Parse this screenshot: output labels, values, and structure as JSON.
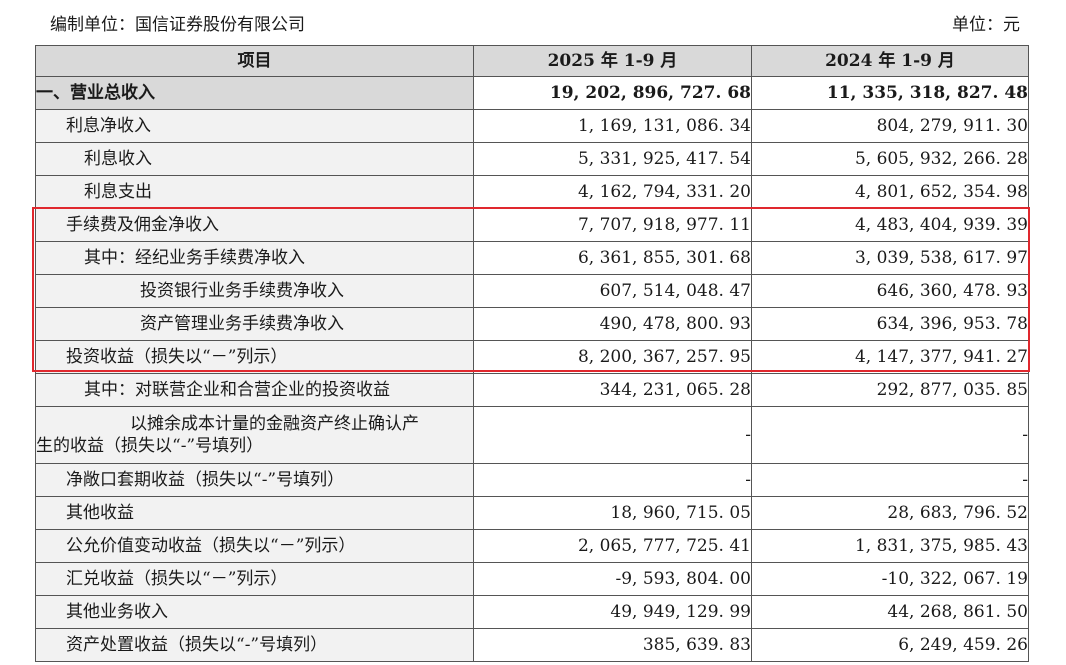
{
  "header": {
    "org": "编制单位：国信证券股份有限公司",
    "unit": "单位：元"
  },
  "table": {
    "headers": [
      "项目",
      "2025 年 1-9 月",
      "2024 年 1-9 月"
    ],
    "rows": [
      {
        "label": "一、营业总收入",
        "v2025": "19, 202, 896, 727. 68",
        "v2024": "11, 335, 318, 827. 48"
      },
      {
        "label": "利息净收入",
        "v2025": "1, 169, 131, 086. 34",
        "v2024": "804, 279, 911. 30"
      },
      {
        "label": "利息收入",
        "v2025": "5, 331, 925, 417. 54",
        "v2024": "5, 605, 932, 266. 28"
      },
      {
        "label": "利息支出",
        "v2025": "4, 162, 794, 331. 20",
        "v2024": "4, 801, 652, 354. 98"
      },
      {
        "label": "手续费及佣金净收入",
        "v2025": "7, 707, 918, 977. 11",
        "v2024": "4, 483, 404, 939. 39"
      },
      {
        "label": "其中：经纪业务手续费净收入",
        "v2025": "6, 361, 855, 301. 68",
        "v2024": "3, 039, 538, 617. 97"
      },
      {
        "label": "投资银行业务手续费净收入",
        "v2025": "607, 514, 048. 47",
        "v2024": "646, 360, 478. 93"
      },
      {
        "label": "资产管理业务手续费净收入",
        "v2025": "490, 478, 800. 93",
        "v2024": "634, 396, 953. 78"
      },
      {
        "label": "投资收益（损失以“－”列示）",
        "v2025": "8, 200, 367, 257. 95",
        "v2024": "4, 147, 377, 941. 27"
      },
      {
        "label": "其中：对联营企业和合营企业的投资收益",
        "v2025": "344, 231, 065. 28",
        "v2024": "292, 877, 035. 85"
      },
      {
        "label_line1": "以摊余成本计量的金融资产终止确认产",
        "label_line2": "生的收益（损失以“-”号填列）",
        "v2025": "-",
        "v2024": "-"
      },
      {
        "label": "净敞口套期收益（损失以“-”号填列）",
        "v2025": "-",
        "v2024": "-"
      },
      {
        "label": "其他收益",
        "v2025": "18, 960, 715. 05",
        "v2024": "28, 683, 796. 52"
      },
      {
        "label": "公允价值变动收益（损失以“－”列示）",
        "v2025": "2, 065, 777, 725. 41",
        "v2024": "1, 831, 375, 985. 43"
      },
      {
        "label": "汇兑收益（损失以“－”列示）",
        "v2025": "-9, 593, 804. 00",
        "v2024": "-10, 322, 067. 19"
      },
      {
        "label": "其他业务收入",
        "v2025": "49, 949, 129. 99",
        "v2024": "44, 268, 861. 50"
      },
      {
        "label": "资产处置收益（损失以“-”号填列）",
        "v2025": "385, 639. 83",
        "v2024": "6, 249, 459. 26"
      }
    ]
  },
  "highlight_color": "#e0282e"
}
